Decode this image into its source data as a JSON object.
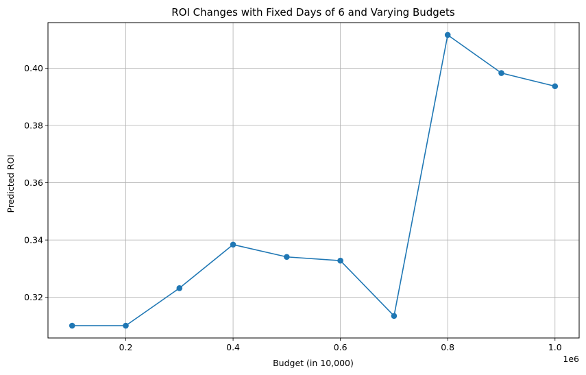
{
  "chart_data": {
    "type": "line",
    "title": "ROI Changes with Fixed Days of 6 and Varying Budgets",
    "xlabel": "Budget (in 10,000)",
    "ylabel": "Predicted ROI",
    "x_offset_label": "1e6",
    "xlim": [
      55000,
      1045000
    ],
    "ylim": [
      0.3058,
      0.4159
    ],
    "xticks": [
      200000,
      400000,
      600000,
      800000,
      1000000
    ],
    "xtick_labels": [
      "0.2",
      "0.4",
      "0.6",
      "0.8",
      "1.0"
    ],
    "yticks": [
      0.32,
      0.34,
      0.36,
      0.38,
      0.4
    ],
    "ytick_labels": [
      "0.32",
      "0.34",
      "0.36",
      "0.38",
      "0.40"
    ],
    "grid": true,
    "series": [
      {
        "color": "#1f77b4",
        "marker": "circle",
        "x": [
          100000,
          200000,
          300000,
          400000,
          500000,
          600000,
          700000,
          800000,
          900000,
          1000000
        ],
        "y": [
          0.3101,
          0.3101,
          0.3232,
          0.3384,
          0.3341,
          0.3328,
          0.3135,
          0.4116,
          0.3983,
          0.3937
        ]
      }
    ]
  }
}
